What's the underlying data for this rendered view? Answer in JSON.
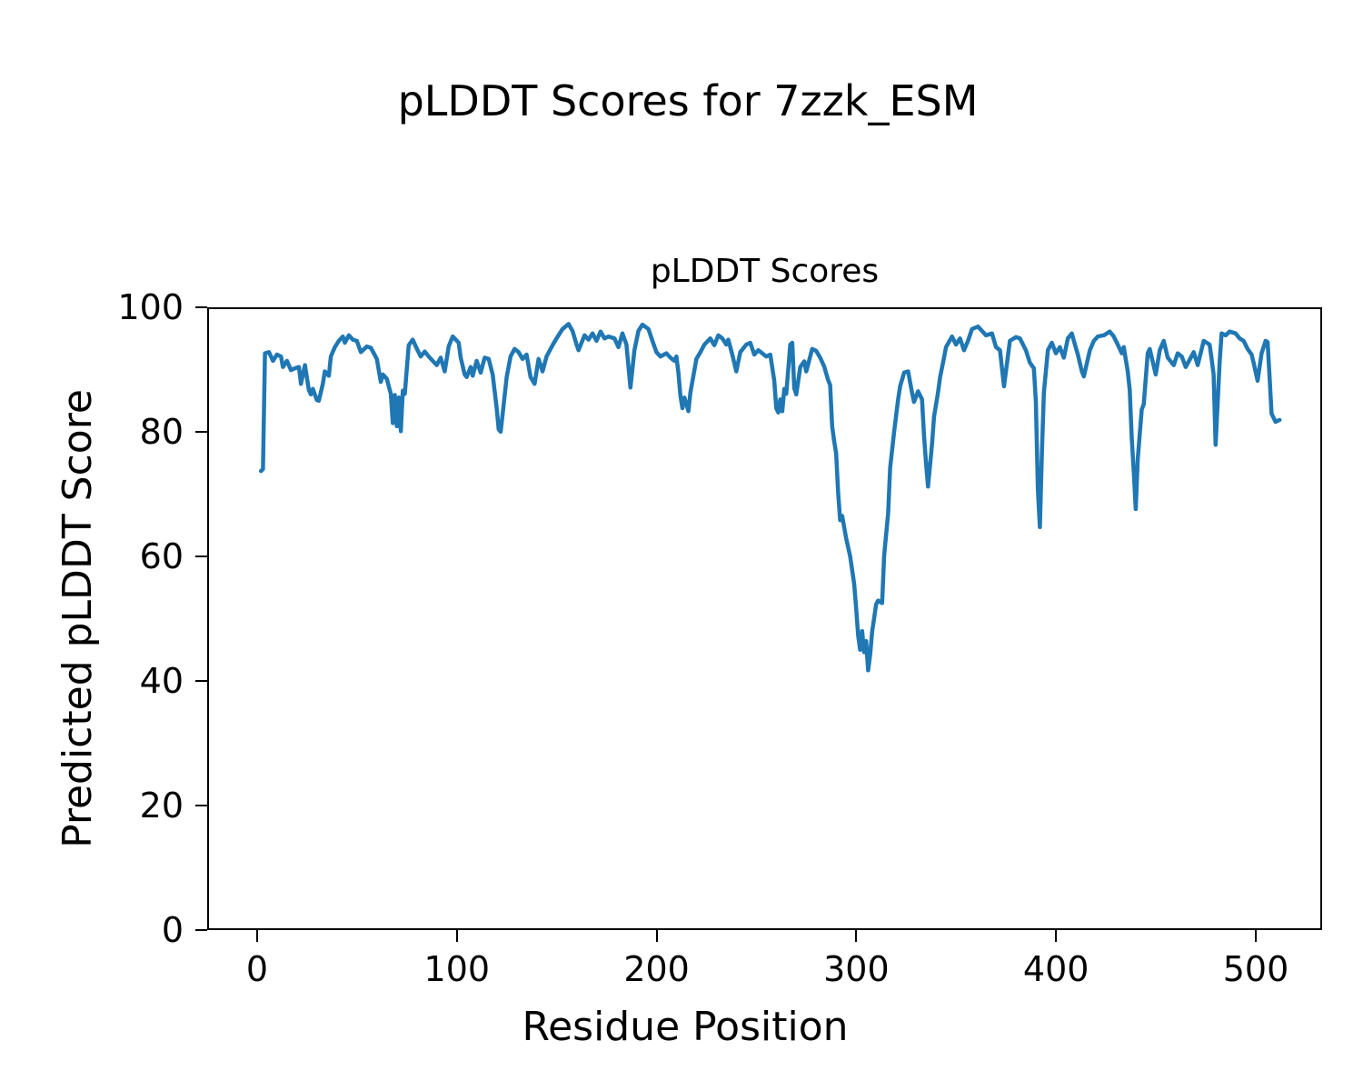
{
  "chart_data": {
    "type": "line",
    "suptitle": "pLDDT Scores for 7zzk_ESM",
    "title": "pLDDT Scores",
    "xlabel": "Residue Position",
    "ylabel": "Predicted pLDDT Score",
    "xticks": [
      0,
      100,
      200,
      300,
      400,
      500
    ],
    "yticks": [
      0,
      20,
      40,
      60,
      80,
      100
    ],
    "xlim": [
      -25,
      533
    ],
    "ylim": [
      0,
      100
    ],
    "grid": false,
    "legend": "none",
    "line_color": "#1f77b4",
    "series": [
      {
        "name": "pLDDT",
        "points": [
          [
            1,
            74.0
          ],
          [
            2,
            74.3
          ],
          [
            3,
            92.9
          ],
          [
            5,
            93.1
          ],
          [
            7,
            91.7
          ],
          [
            9,
            92.7
          ],
          [
            11,
            92.4
          ],
          [
            12,
            90.7
          ],
          [
            14,
            91.7
          ],
          [
            16,
            90.2
          ],
          [
            18,
            90.5
          ],
          [
            20,
            90.7
          ],
          [
            21,
            88.0
          ],
          [
            23,
            91.0
          ],
          [
            25,
            87.0
          ],
          [
            26,
            86.3
          ],
          [
            27,
            87.2
          ],
          [
            29,
            85.4
          ],
          [
            30,
            85.3
          ],
          [
            32,
            88.0
          ],
          [
            33,
            90.0
          ],
          [
            35,
            89.3
          ],
          [
            36,
            92.4
          ],
          [
            38,
            93.9
          ],
          [
            40,
            94.9
          ],
          [
            42,
            95.6
          ],
          [
            43,
            94.6
          ],
          [
            45,
            95.8
          ],
          [
            47,
            95.1
          ],
          [
            49,
            94.9
          ],
          [
            51,
            93.1
          ],
          [
            54,
            94.0
          ],
          [
            56,
            93.8
          ],
          [
            59,
            92.0
          ],
          [
            61,
            88.3
          ],
          [
            62,
            89.5
          ],
          [
            64,
            88.8
          ],
          [
            66,
            86.4
          ],
          [
            67,
            81.7
          ],
          [
            68,
            86.2
          ],
          [
            69,
            81.2
          ],
          [
            70,
            85.8
          ],
          [
            71,
            80.4
          ],
          [
            72,
            86.9
          ],
          [
            73,
            86.4
          ],
          [
            75,
            94.2
          ],
          [
            77,
            95.1
          ],
          [
            79,
            93.7
          ],
          [
            81,
            92.4
          ],
          [
            83,
            93.2
          ],
          [
            85,
            92.4
          ],
          [
            87,
            91.7
          ],
          [
            89,
            91.0
          ],
          [
            91,
            92.2
          ],
          [
            93,
            90.0
          ],
          [
            95,
            94.0
          ],
          [
            97,
            95.6
          ],
          [
            100,
            94.6
          ],
          [
            101,
            92.2
          ],
          [
            103,
            89.5
          ],
          [
            104,
            89.1
          ],
          [
            106,
            90.7
          ],
          [
            107,
            89.3
          ],
          [
            109,
            91.7
          ],
          [
            111,
            89.8
          ],
          [
            113,
            92.2
          ],
          [
            115,
            92.0
          ],
          [
            117,
            89.5
          ],
          [
            119,
            84.1
          ],
          [
            120,
            80.7
          ],
          [
            121,
            80.3
          ],
          [
            122,
            83.2
          ],
          [
            124,
            89.1
          ],
          [
            126,
            92.4
          ],
          [
            128,
            93.6
          ],
          [
            130,
            93.1
          ],
          [
            132,
            92.0
          ],
          [
            134,
            92.7
          ],
          [
            136,
            89.1
          ],
          [
            138,
            88.0
          ],
          [
            140,
            92.0
          ],
          [
            142,
            90.0
          ],
          [
            144,
            92.4
          ],
          [
            147,
            94.2
          ],
          [
            149,
            95.3
          ],
          [
            152,
            96.8
          ],
          [
            155,
            97.6
          ],
          [
            157,
            96.5
          ],
          [
            159,
            94.3
          ],
          [
            160,
            93.4
          ],
          [
            163,
            95.8
          ],
          [
            165,
            95.1
          ],
          [
            167,
            96.1
          ],
          [
            169,
            94.9
          ],
          [
            171,
            96.4
          ],
          [
            173,
            95.3
          ],
          [
            175,
            95.6
          ],
          [
            178,
            95.3
          ],
          [
            180,
            93.9
          ],
          [
            182,
            96.1
          ],
          [
            184,
            94.3
          ],
          [
            186,
            87.4
          ],
          [
            188,
            93.4
          ],
          [
            190,
            96.5
          ],
          [
            192,
            97.5
          ],
          [
            195,
            96.8
          ],
          [
            197,
            94.9
          ],
          [
            199,
            93.1
          ],
          [
            201,
            92.4
          ],
          [
            204,
            92.9
          ],
          [
            206,
            92.2
          ],
          [
            208,
            91.7
          ],
          [
            209,
            92.4
          ],
          [
            210,
            89.8
          ],
          [
            211,
            86.1
          ],
          [
            212,
            84.1
          ],
          [
            213,
            85.8
          ],
          [
            215,
            83.6
          ],
          [
            216,
            86.6
          ],
          [
            218,
            90.2
          ],
          [
            219,
            92.0
          ],
          [
            221,
            93.1
          ],
          [
            223,
            94.3
          ],
          [
            226,
            95.3
          ],
          [
            228,
            94.2
          ],
          [
            230,
            95.8
          ],
          [
            232,
            95.3
          ],
          [
            234,
            94.3
          ],
          [
            235,
            95.1
          ],
          [
            237,
            92.7
          ],
          [
            239,
            90.0
          ],
          [
            241,
            93.1
          ],
          [
            244,
            94.3
          ],
          [
            246,
            94.6
          ],
          [
            248,
            92.7
          ],
          [
            250,
            93.4
          ],
          [
            252,
            92.9
          ],
          [
            254,
            92.4
          ],
          [
            256,
            92.7
          ],
          [
            258,
            88.5
          ],
          [
            259,
            84.1
          ],
          [
            260,
            83.4
          ],
          [
            261,
            85.5
          ],
          [
            262,
            83.6
          ],
          [
            263,
            87.2
          ],
          [
            264,
            86.4
          ],
          [
            266,
            94.3
          ],
          [
            267,
            94.6
          ],
          [
            268,
            87.3
          ],
          [
            269,
            86.3
          ],
          [
            271,
            90.7
          ],
          [
            273,
            91.6
          ],
          [
            274,
            90.0
          ],
          [
            277,
            93.6
          ],
          [
            279,
            93.3
          ],
          [
            281,
            92.2
          ],
          [
            283,
            90.8
          ],
          [
            285,
            88.6
          ],
          [
            286,
            87.8
          ],
          [
            287,
            81.2
          ],
          [
            288,
            78.8
          ],
          [
            289,
            76.8
          ],
          [
            290,
            70.5
          ],
          [
            291,
            66.1
          ],
          [
            292,
            66.8
          ],
          [
            294,
            63.2
          ],
          [
            296,
            60.3
          ],
          [
            298,
            55.9
          ],
          [
            299,
            52.0
          ],
          [
            300,
            47.6
          ],
          [
            301,
            45.3
          ],
          [
            302,
            48.3
          ],
          [
            303,
            44.9
          ],
          [
            304,
            46.7
          ],
          [
            305,
            42.0
          ],
          [
            306,
            44.5
          ],
          [
            307,
            48.2
          ],
          [
            309,
            52.6
          ],
          [
            310,
            53.2
          ],
          [
            312,
            52.8
          ],
          [
            313,
            60.4
          ],
          [
            315,
            67.2
          ],
          [
            316,
            74.5
          ],
          [
            318,
            80.3
          ],
          [
            320,
            85.5
          ],
          [
            321,
            87.6
          ],
          [
            323,
            89.8
          ],
          [
            325,
            90.0
          ],
          [
            327,
            86.6
          ],
          [
            328,
            85.1
          ],
          [
            330,
            86.8
          ],
          [
            332,
            85.5
          ],
          [
            333,
            79.7
          ],
          [
            334,
            75.3
          ],
          [
            335,
            71.5
          ],
          [
            337,
            78.3
          ],
          [
            338,
            82.7
          ],
          [
            340,
            86.6
          ],
          [
            341,
            89.0
          ],
          [
            343,
            92.2
          ],
          [
            344,
            93.9
          ],
          [
            347,
            95.6
          ],
          [
            349,
            94.3
          ],
          [
            351,
            95.3
          ],
          [
            353,
            93.4
          ],
          [
            355,
            94.9
          ],
          [
            357,
            96.8
          ],
          [
            360,
            97.2
          ],
          [
            362,
            96.5
          ],
          [
            364,
            95.8
          ],
          [
            367,
            96.1
          ],
          [
            369,
            93.9
          ],
          [
            371,
            93.4
          ],
          [
            373,
            87.6
          ],
          [
            376,
            94.9
          ],
          [
            379,
            95.5
          ],
          [
            381,
            95.3
          ],
          [
            384,
            93.4
          ],
          [
            386,
            91.4
          ],
          [
            388,
            90.5
          ],
          [
            389,
            85.1
          ],
          [
            390,
            71.0
          ],
          [
            391,
            65.0
          ],
          [
            392,
            76.8
          ],
          [
            393,
            86.6
          ],
          [
            395,
            93.4
          ],
          [
            397,
            94.6
          ],
          [
            399,
            92.9
          ],
          [
            401,
            93.9
          ],
          [
            403,
            92.2
          ],
          [
            405,
            95.3
          ],
          [
            407,
            96.1
          ],
          [
            408,
            94.9
          ],
          [
            410,
            92.7
          ],
          [
            412,
            90.0
          ],
          [
            413,
            89.2
          ],
          [
            416,
            93.4
          ],
          [
            418,
            94.9
          ],
          [
            420,
            95.6
          ],
          [
            423,
            95.8
          ],
          [
            426,
            96.4
          ],
          [
            428,
            95.6
          ],
          [
            430,
            94.3
          ],
          [
            432,
            92.9
          ],
          [
            433,
            93.9
          ],
          [
            435,
            90.0
          ],
          [
            436,
            87.0
          ],
          [
            437,
            79.3
          ],
          [
            438,
            73.9
          ],
          [
            439,
            67.9
          ],
          [
            440,
            75.9
          ],
          [
            442,
            83.9
          ],
          [
            443,
            84.7
          ],
          [
            445,
            92.9
          ],
          [
            446,
            93.6
          ],
          [
            449,
            89.5
          ],
          [
            451,
            93.4
          ],
          [
            453,
            94.9
          ],
          [
            455,
            92.2
          ],
          [
            458,
            91.0
          ],
          [
            460,
            92.9
          ],
          [
            462,
            92.4
          ],
          [
            464,
            90.7
          ],
          [
            466,
            91.9
          ],
          [
            468,
            93.1
          ],
          [
            470,
            91.0
          ],
          [
            473,
            94.9
          ],
          [
            476,
            94.3
          ],
          [
            477,
            92.0
          ],
          [
            478,
            89.5
          ],
          [
            479,
            78.2
          ],
          [
            481,
            91.4
          ],
          [
            482,
            96.1
          ],
          [
            484,
            95.8
          ],
          [
            486,
            96.4
          ],
          [
            489,
            96.1
          ],
          [
            491,
            95.3
          ],
          [
            493,
            94.9
          ],
          [
            495,
            93.6
          ],
          [
            497,
            92.7
          ],
          [
            498,
            91.4
          ],
          [
            500,
            88.5
          ],
          [
            502,
            92.9
          ],
          [
            504,
            94.9
          ],
          [
            505,
            94.7
          ],
          [
            506,
            89.1
          ],
          [
            507,
            83.2
          ],
          [
            509,
            81.9
          ],
          [
            511,
            82.2
          ]
        ]
      }
    ]
  }
}
